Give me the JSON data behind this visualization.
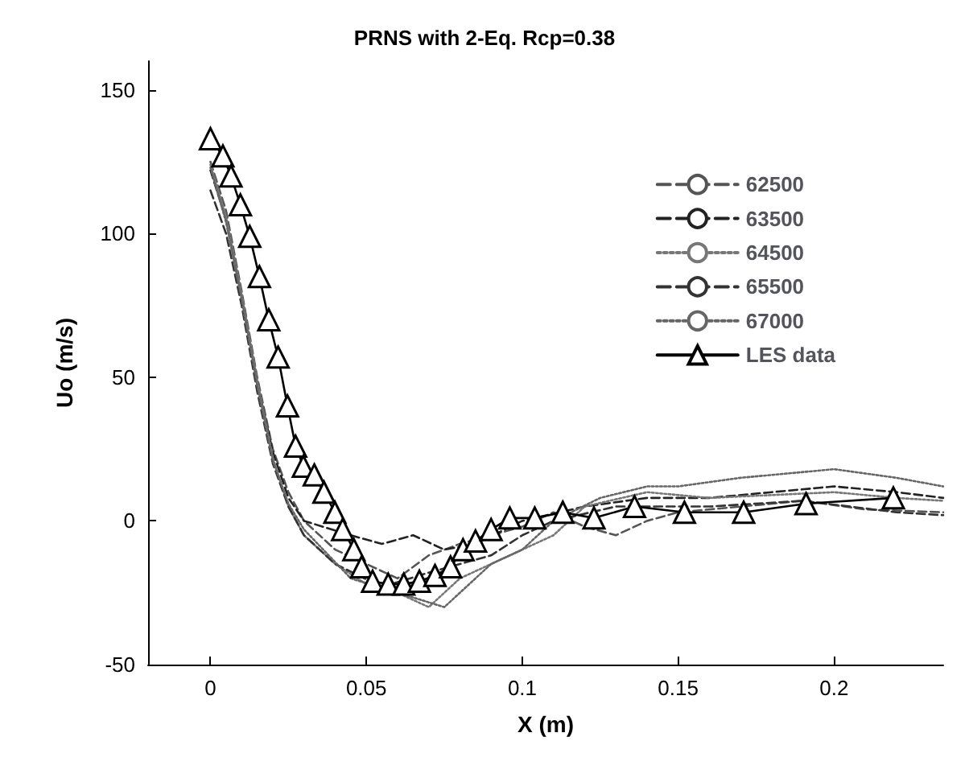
{
  "chart_data": {
    "type": "line",
    "title": "PRNS with 2-Eq. Rcp=0.38",
    "xlabel": "X (m)",
    "ylabel": "Uo (m/s)",
    "xlim": [
      -0.02,
      0.235
    ],
    "xticks": [
      0,
      0.05,
      0.1,
      0.15,
      0.2
    ],
    "ylim": [
      -50,
      160
    ],
    "yticks": [
      -50,
      0,
      50,
      100,
      150
    ],
    "grid": false,
    "legend": "top right",
    "series": [
      {
        "name": "62500",
        "color": "#555555",
        "line_style": "dashed",
        "marker": "none",
        "x": [
          0,
          0.005,
          0.01,
          0.015,
          0.02,
          0.025,
          0.03,
          0.04,
          0.05,
          0.06,
          0.07,
          0.08,
          0.09,
          0.1,
          0.11,
          0.12,
          0.13,
          0.14,
          0.15,
          0.17,
          0.19,
          0.21,
          0.235
        ],
        "values": [
          125,
          108,
          80,
          50,
          25,
          10,
          0,
          -10,
          -15,
          -20,
          -12,
          -8,
          -5,
          -2,
          3,
          -2,
          -5,
          0,
          3,
          5,
          7,
          4,
          3
        ]
      },
      {
        "name": "63500",
        "color": "#222222",
        "line_style": "dashed",
        "marker": "none",
        "x": [
          0,
          0.005,
          0.01,
          0.015,
          0.02,
          0.025,
          0.03,
          0.045,
          0.055,
          0.065,
          0.075,
          0.085,
          0.1,
          0.12,
          0.14,
          0.16,
          0.18,
          0.2,
          0.22,
          0.235
        ],
        "values": [
          122,
          105,
          78,
          48,
          24,
          8,
          0,
          -5,
          -8,
          -5,
          -10,
          -8,
          0,
          5,
          8,
          8,
          10,
          12,
          10,
          8
        ]
      },
      {
        "name": "64500",
        "color": "#777777",
        "line_style": "dotted",
        "marker": "none",
        "x": [
          0,
          0.005,
          0.01,
          0.015,
          0.02,
          0.025,
          0.03,
          0.04,
          0.05,
          0.06,
          0.07,
          0.08,
          0.1,
          0.11,
          0.12,
          0.14,
          0.16,
          0.18,
          0.2,
          0.22,
          0.235
        ],
        "values": [
          124,
          106,
          79,
          49,
          22,
          5,
          -5,
          -15,
          -22,
          -25,
          -30,
          -20,
          -10,
          -5,
          5,
          10,
          8,
          9,
          10,
          8,
          7
        ]
      },
      {
        "name": "65500",
        "color": "#333333",
        "line_style": "dashed",
        "marker": "none",
        "x": [
          0,
          0.005,
          0.01,
          0.015,
          0.02,
          0.025,
          0.03,
          0.04,
          0.055,
          0.07,
          0.09,
          0.1,
          0.11,
          0.13,
          0.16,
          0.19,
          0.22,
          0.235
        ],
        "values": [
          115,
          100,
          75,
          45,
          20,
          5,
          -5,
          -15,
          -23,
          -18,
          -12,
          -5,
          0,
          5,
          5,
          7,
          3,
          2
        ]
      },
      {
        "name": "67000",
        "color": "#666666",
        "line_style": "dotted",
        "marker": "none",
        "x": [
          0,
          0.005,
          0.01,
          0.015,
          0.02,
          0.025,
          0.03,
          0.045,
          0.06,
          0.075,
          0.09,
          0.1,
          0.11,
          0.125,
          0.14,
          0.15,
          0.17,
          0.2,
          0.22,
          0.235
        ],
        "values": [
          123,
          104,
          77,
          47,
          21,
          6,
          -3,
          -20,
          -25,
          -30,
          -15,
          -10,
          0,
          8,
          12,
          12,
          15,
          18,
          15,
          12
        ]
      },
      {
        "name": "LES data",
        "color": "#000000",
        "line_style": "solid",
        "marker": "triangle",
        "x": [
          0,
          0.004,
          0.0066,
          0.0096,
          0.0126,
          0.0157,
          0.0187,
          0.0217,
          0.0247,
          0.0273,
          0.0298,
          0.0333,
          0.0364,
          0.0399,
          0.0424,
          0.046,
          0.0485,
          0.052,
          0.057,
          0.062,
          0.067,
          0.072,
          0.077,
          0.081,
          0.085,
          0.09,
          0.096,
          0.104,
          0.113,
          0.123,
          0.136,
          0.152,
          0.171,
          0.191,
          0.219
        ],
        "values": [
          133,
          127,
          120,
          110,
          99,
          85,
          70,
          57,
          40,
          26,
          19,
          16,
          10,
          3,
          -3,
          -10,
          -16,
          -21,
          -22,
          -22,
          -21,
          -19,
          -16,
          -10,
          -7,
          -3,
          1,
          1,
          3,
          1,
          5,
          3,
          3,
          6,
          8
        ]
      }
    ]
  }
}
